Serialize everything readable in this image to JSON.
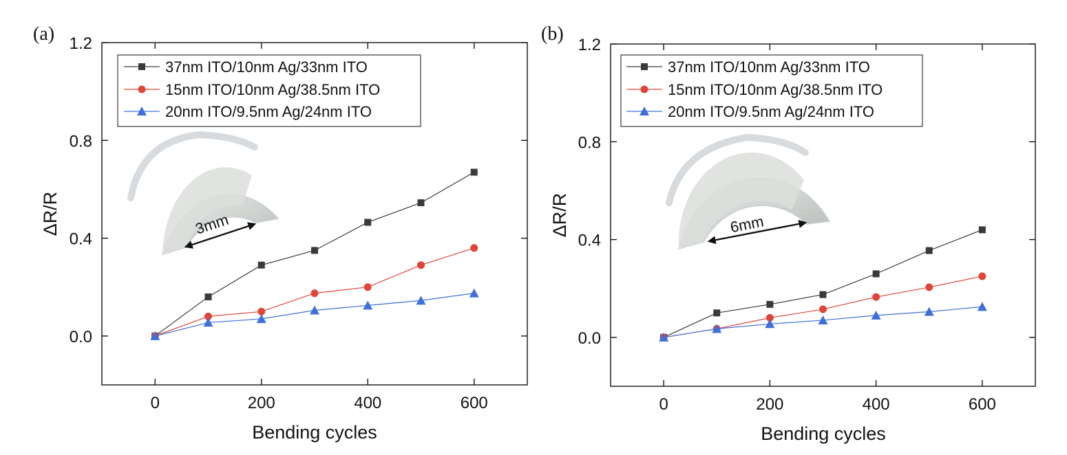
{
  "figure": {
    "panels": [
      {
        "panel_label": "(a)",
        "inset_dimension": "3mm"
      },
      {
        "panel_label": "(b)",
        "inset_dimension": "6mm"
      }
    ]
  },
  "colors": {
    "series_1": "#3a3a3a",
    "series_2": "#e0453a",
    "series_3": "#3f6fd8",
    "axis": "#111111"
  },
  "chart_data": [
    {
      "type": "line",
      "panel": "(a)",
      "xlabel": "Bending cycles",
      "ylabel": "ΔR/R",
      "xlim": [
        -100,
        700
      ],
      "ylim": [
        -0.2,
        1.2
      ],
      "x_ticks": [
        0,
        200,
        400,
        600
      ],
      "y_ticks": [
        0.0,
        0.4,
        0.8,
        1.2
      ],
      "y_tick_labels": [
        "0.0",
        "0.4",
        "0.8",
        "1.2"
      ],
      "x": [
        0,
        100,
        200,
        300,
        400,
        500,
        600
      ],
      "legend_position": "top-left",
      "grid": false,
      "series": [
        {
          "name": "37nm ITO/10nm Ag/33nm ITO",
          "marker": "square",
          "values": [
            0.0,
            0.16,
            0.29,
            0.35,
            0.465,
            0.545,
            0.67
          ]
        },
        {
          "name": "15nm ITO/10nm Ag/38.5nm ITO",
          "marker": "circle",
          "values": [
            0.0,
            0.08,
            0.1,
            0.175,
            0.2,
            0.29,
            0.36
          ]
        },
        {
          "name": "20nm ITO/9.5nm Ag/24nm ITO",
          "marker": "triangle",
          "values": [
            0.0,
            0.055,
            0.07,
            0.105,
            0.125,
            0.145,
            0.175
          ]
        }
      ]
    },
    {
      "type": "line",
      "panel": "(b)",
      "xlabel": "Bending cycles",
      "ylabel": "ΔR/R",
      "xlim": [
        -100,
        700
      ],
      "ylim": [
        -0.2,
        1.2
      ],
      "x_ticks": [
        0,
        200,
        400,
        600
      ],
      "y_ticks": [
        0.0,
        0.4,
        0.8,
        1.2
      ],
      "y_tick_labels": [
        "0.0",
        "0.4",
        "0.8",
        "1.2"
      ],
      "x": [
        0,
        100,
        200,
        300,
        400,
        500,
        600
      ],
      "legend_position": "top-left",
      "grid": false,
      "series": [
        {
          "name": "37nm ITO/10nm Ag/33nm ITO",
          "marker": "square",
          "values": [
            0.0,
            0.1,
            0.135,
            0.175,
            0.26,
            0.355,
            0.44
          ]
        },
        {
          "name": "15nm ITO/10nm Ag/38.5nm ITO",
          "marker": "circle",
          "values": [
            0.0,
            0.035,
            0.08,
            0.115,
            0.165,
            0.205,
            0.25
          ]
        },
        {
          "name": "20nm ITO/9.5nm Ag/24nm ITO",
          "marker": "triangle",
          "values": [
            0.0,
            0.035,
            0.055,
            0.07,
            0.09,
            0.105,
            0.125
          ]
        }
      ]
    }
  ]
}
